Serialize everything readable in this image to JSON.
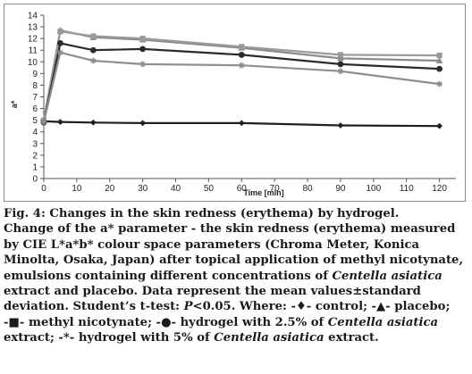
{
  "chart_data": {
    "type": "line",
    "xlabel": "Time [min]",
    "ylabel": "a*",
    "xlim": [
      0,
      125
    ],
    "ylim": [
      0,
      14
    ],
    "x_ticks": [
      0,
      10,
      20,
      30,
      40,
      50,
      60,
      70,
      80,
      90,
      100,
      110,
      120
    ],
    "y_ticks": [
      0,
      1,
      2,
      3,
      4,
      5,
      6,
      7,
      8,
      9,
      10,
      11,
      12,
      13,
      14
    ],
    "grid": false,
    "x": [
      0,
      5,
      15,
      30,
      60,
      90,
      120
    ],
    "series": [
      {
        "name": "control",
        "marker": "diamond",
        "color": "#1f1f1f",
        "values": [
          4.9,
          4.85,
          4.8,
          4.75,
          4.75,
          4.55,
          4.5
        ]
      },
      {
        "name": "placebo",
        "marker": "triangle",
        "color": "#8a8a8a",
        "values": [
          5.0,
          12.7,
          12.1,
          11.9,
          11.2,
          10.3,
          10.1
        ]
      },
      {
        "name": "methyl nicotynate",
        "marker": "square",
        "color": "#9a9a9a",
        "values": [
          5.0,
          12.6,
          12.2,
          12.0,
          11.3,
          10.6,
          10.55
        ]
      },
      {
        "name": "hydrogel with 2.5% of Centella asiatica extract",
        "marker": "circle",
        "color": "#2b2b2b",
        "values": [
          4.8,
          11.6,
          11.0,
          11.1,
          10.6,
          9.8,
          9.4
        ]
      },
      {
        "name": "hydrogel with 5% of Centella asiatica extract",
        "marker": "star",
        "color": "#8f8f8f",
        "values": [
          4.85,
          10.8,
          10.1,
          9.8,
          9.7,
          9.2,
          8.1
        ]
      }
    ]
  },
  "caption": {
    "l1": "Fig. 4: Changes in the skin redness (erythema) by hydrogel.",
    "l2": "Change of the a* parameter - the skin redness (erythema) measured",
    "l3": "by CIE L*a*b* colour space parameters (Chroma Meter, Konica",
    "l4": "Minolta, Osaka, Japan) after topical application of methyl nicotynate,",
    "l5a": "emulsions containing different concentrations of ",
    "l5b": "Centella asiatica",
    "l6": "extract and placebo. Data represent the mean values±standard",
    "l7a": "deviation. Student’s t-test: ",
    "l7b": "P",
    "l7c": "<0.05. Where: -♦- control; -▲- placebo;",
    "l8a": "-■- methyl nicotynate; -●- hydrogel with 2.5% of ",
    "l8b": "Centella asiatica",
    "l9a": "extract; -*- hydrogel with 5% of ",
    "l9b": "Centella asiatica",
    "l9c": " extract."
  }
}
